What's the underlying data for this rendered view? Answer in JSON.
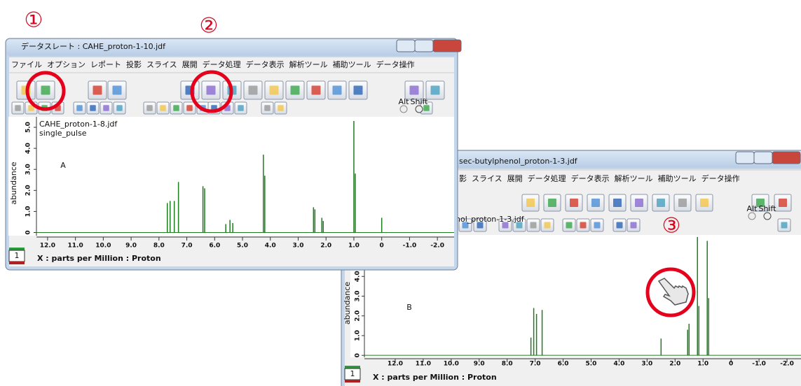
{
  "annotations": [
    "①",
    "②",
    "③"
  ],
  "window_b": {
    "title": "sec-butylphenol_proton-1-3.jdf",
    "menu": [
      "影",
      "スライス",
      "展開",
      "データ処理",
      "データ表示",
      "解析ツール",
      "補助ツール",
      "データ操作"
    ],
    "toolbar": {
      "alt": "Alt",
      "shift": "Shift"
    },
    "spectrum": {
      "file": "nol_proton-1-3.jdf",
      "label": "B",
      "ylabel": "abundance",
      "color": "#1e7d1e",
      "xlim": [
        13.1,
        -2.5
      ],
      "ylim": [
        -0.1,
        6.1
      ],
      "xticks": [
        {
          "value": 12,
          "label": "12.0"
        },
        {
          "value": 11,
          "label": "11.0"
        },
        {
          "value": 10,
          "label": "10.0"
        },
        {
          "value": 9,
          "label": "9.0"
        },
        {
          "value": 8,
          "label": "8.0"
        },
        {
          "value": 7,
          "label": "7.0"
        },
        {
          "value": 6,
          "label": "6.0"
        },
        {
          "value": 5,
          "label": "5.0"
        },
        {
          "value": 4,
          "label": "4.0"
        },
        {
          "value": 3,
          "label": "3.0"
        },
        {
          "value": 2,
          "label": "2.0"
        },
        {
          "value": 1,
          "label": "1.0"
        },
        0,
        {
          "value": -1,
          "label": "-1.0"
        },
        {
          "value": -2,
          "label": "-2.0"
        }
      ],
      "yticks": [
        0,
        {
          "value": 1,
          "label": "1.0"
        },
        {
          "value": 2,
          "label": "2.0"
        },
        {
          "value": 3,
          "label": "3.0"
        },
        {
          "value": 4,
          "label": "4.0"
        }
      ],
      "peaks": {
        "x": [
          7.15,
          7.05,
          6.95,
          6.75,
          2.5,
          1.55,
          1.5,
          1.2,
          1.15,
          0.85,
          0.8
        ],
        "y": [
          0.9,
          2.4,
          2.1,
          2.3,
          0.85,
          1.3,
          1.6,
          6.0,
          2.5,
          5.8,
          2.9
        ]
      }
    },
    "status": "X : parts per Million : Proton",
    "page": "1"
  },
  "window_a": {
    "title": "データスレート : CAHE_proton-1-10.jdf",
    "menu": [
      "ファイル",
      "オプション",
      "レポート",
      "投影",
      "スライス",
      "展開",
      "データ処理",
      "データ表示",
      "解析ツール",
      "補助ツール",
      "データ操作"
    ],
    "toolbar": {
      "alt": "Alt",
      "shift": "Shift"
    },
    "spectrum": {
      "file": "CAHE_proton-1-8.jdf",
      "pulse": "single_pulse",
      "label": "A",
      "ylabel": "abundance",
      "color": "#1e7d1e",
      "xlim": [
        12.4,
        -2.6
      ],
      "ylim": [
        -0.15,
        5.5
      ],
      "xticks": [
        {
          "value": 12,
          "label": "12.0"
        },
        {
          "value": 11,
          "label": "11.0"
        },
        {
          "value": 10,
          "label": "10.0"
        },
        {
          "value": 9,
          "label": "9.0"
        },
        {
          "value": 8,
          "label": "8.0"
        },
        {
          "value": 7,
          "label": "7.0"
        },
        {
          "value": 6,
          "label": "6.0"
        },
        {
          "value": 5,
          "label": "5.0"
        },
        {
          "value": 4,
          "label": "4.0"
        },
        {
          "value": 3,
          "label": "3.0"
        },
        {
          "value": 2,
          "label": "2.0"
        },
        {
          "value": 1,
          "label": "1.0"
        },
        0,
        {
          "value": -1,
          "label": "-1.0"
        },
        {
          "value": -2,
          "label": "-2.0"
        }
      ],
      "yticks": [
        0,
        {
          "value": 1,
          "label": "1.0"
        },
        {
          "value": 2,
          "label": "2.0"
        },
        {
          "value": 3,
          "label": "3.0"
        },
        {
          "value": 4,
          "label": "4.0"
        },
        {
          "value": 5,
          "label": "5.0"
        }
      ],
      "peaks": {
        "x": [
          7.7,
          7.6,
          7.45,
          7.3,
          6.42,
          6.36,
          5.6,
          5.45,
          5.35,
          4.25,
          4.2,
          2.45,
          2.4,
          2.15,
          2.1,
          1.0,
          0.95,
          0.0
        ],
        "y": [
          1.4,
          1.5,
          1.5,
          2.4,
          2.2,
          2.1,
          0.4,
          0.6,
          0.45,
          3.7,
          2.7,
          1.2,
          1.1,
          0.7,
          0.55,
          5.3,
          2.8,
          0.7
        ]
      }
    },
    "status": "X : parts per Million : Proton",
    "page": "1"
  }
}
